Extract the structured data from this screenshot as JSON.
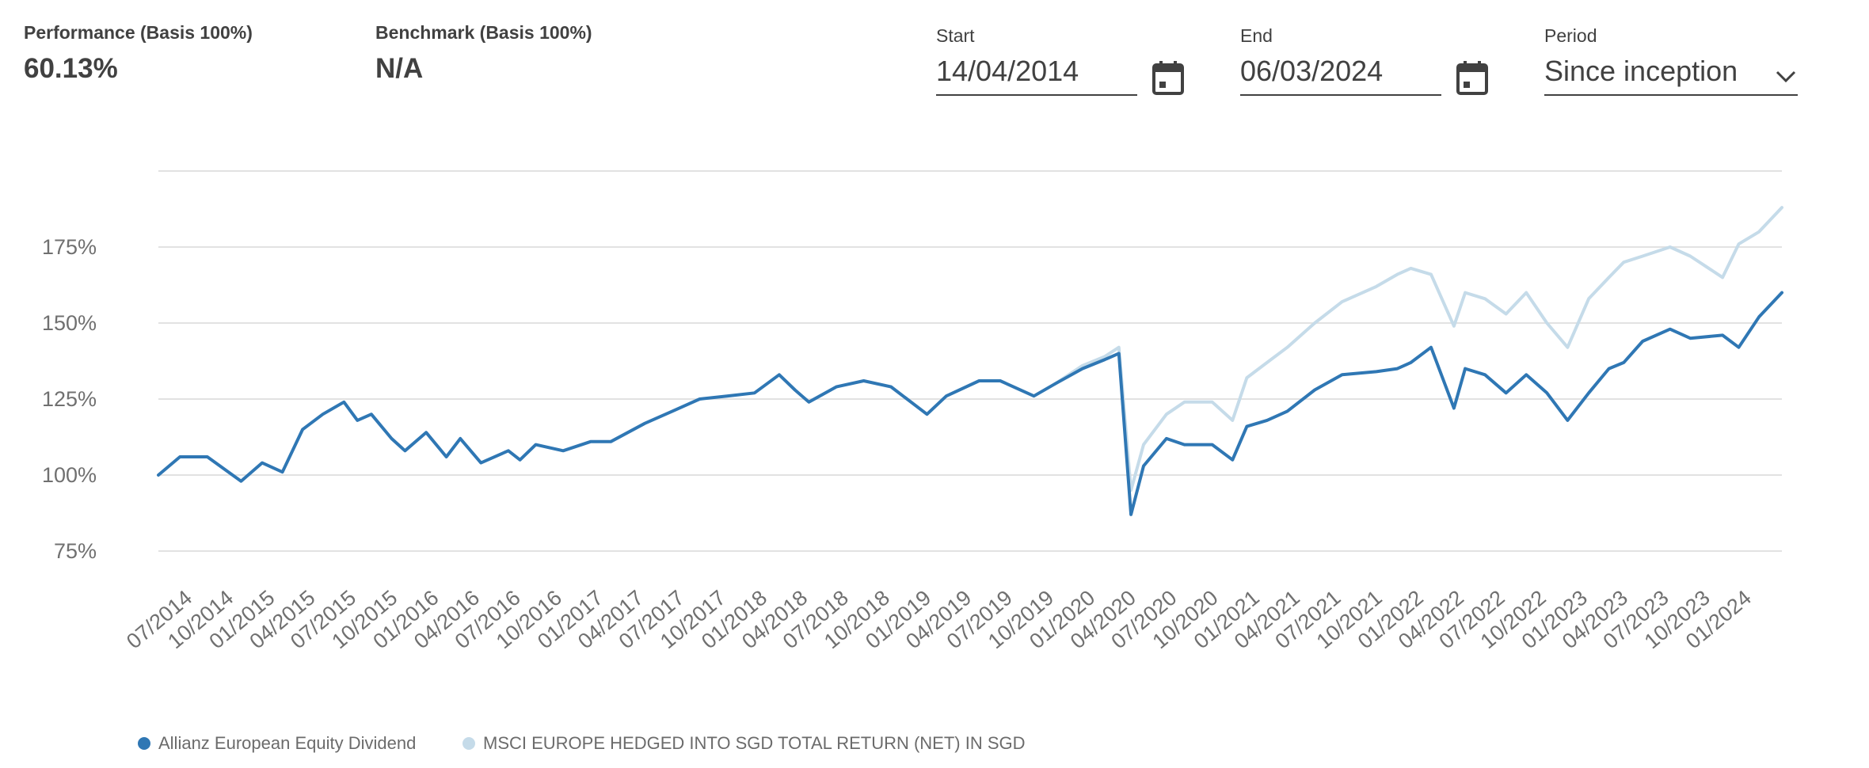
{
  "header": {
    "performance": {
      "label": "Performance (Basis 100%)",
      "value": "60.13%"
    },
    "benchmark": {
      "label": "Benchmark (Basis 100%)",
      "value": "N/A"
    },
    "start": {
      "label": "Start",
      "value": "14/04/2014",
      "icon": "calendar-icon"
    },
    "end": {
      "label": "End",
      "value": "06/03/2024",
      "icon": "calendar-icon"
    },
    "period": {
      "label": "Period",
      "value": "Since inception",
      "icon": "chevron-down-icon"
    }
  },
  "chart_data": {
    "type": "line",
    "title": "",
    "xlabel": "",
    "ylabel": "",
    "ylim": [
      75,
      200
    ],
    "yticks": [
      75,
      100,
      125,
      150,
      175
    ],
    "ytick_labels": [
      "75%",
      "100%",
      "125%",
      "150%",
      "175%"
    ],
    "xlim": [
      "2014-04-14",
      "2024-03-06"
    ],
    "xtick_labels": [
      "07/2014",
      "10/2014",
      "01/2015",
      "04/2015",
      "07/2015",
      "10/2015",
      "01/2016",
      "04/2016",
      "07/2016",
      "10/2016",
      "01/2017",
      "04/2017",
      "07/2017",
      "10/2017",
      "01/2018",
      "04/2018",
      "07/2018",
      "10/2018",
      "01/2019",
      "04/2019",
      "07/2019",
      "10/2019",
      "01/2020",
      "04/2020",
      "07/2020",
      "10/2020",
      "01/2021",
      "04/2021",
      "07/2021",
      "10/2021",
      "01/2022",
      "04/2022",
      "07/2022",
      "10/2022",
      "01/2023",
      "04/2023",
      "07/2023",
      "10/2023",
      "01/2024"
    ],
    "grid": true,
    "legend_position": "bottom-left",
    "series": [
      {
        "name": "Allianz European Equity Dividend",
        "color": "#2f77b4",
        "x": [
          "2014-04-14",
          "2014-06-01",
          "2014-08-01",
          "2014-10-15",
          "2014-12-01",
          "2015-01-15",
          "2015-03-01",
          "2015-04-15",
          "2015-06-01",
          "2015-07-01",
          "2015-08-01",
          "2015-09-15",
          "2015-10-15",
          "2015-12-01",
          "2016-01-15",
          "2016-02-15",
          "2016-04-01",
          "2016-06-01",
          "2016-06-27",
          "2016-08-01",
          "2016-10-01",
          "2016-12-01",
          "2017-01-15",
          "2017-04-01",
          "2017-06-01",
          "2017-08-01",
          "2017-10-01",
          "2017-12-01",
          "2018-01-25",
          "2018-03-01",
          "2018-04-01",
          "2018-06-01",
          "2018-08-01",
          "2018-10-01",
          "2018-12-20",
          "2019-02-01",
          "2019-04-15",
          "2019-06-01",
          "2019-08-15",
          "2019-10-01",
          "2019-12-01",
          "2020-01-20",
          "2020-02-20",
          "2020-03-18",
          "2020-04-15",
          "2020-06-05",
          "2020-07-15",
          "2020-09-15",
          "2020-10-30",
          "2020-12-01",
          "2021-01-15",
          "2021-03-01",
          "2021-05-01",
          "2021-07-01",
          "2021-09-15",
          "2021-11-01",
          "2021-12-01",
          "2022-01-15",
          "2022-03-07",
          "2022-04-01",
          "2022-05-15",
          "2022-07-01",
          "2022-08-15",
          "2022-09-30",
          "2022-11-15",
          "2023-01-01",
          "2023-02-15",
          "2023-03-20",
          "2023-05-01",
          "2023-07-01",
          "2023-08-15",
          "2023-10-26",
          "2023-12-01",
          "2024-01-15",
          "2024-03-06"
        ],
        "values": [
          100,
          106,
          106,
          98,
          104,
          101,
          115,
          120,
          124,
          118,
          120,
          112,
          108,
          114,
          106,
          112,
          104,
          108,
          105,
          110,
          108,
          111,
          111,
          117,
          121,
          125,
          126,
          127,
          133,
          128,
          124,
          129,
          131,
          129,
          120,
          126,
          131,
          131,
          126,
          130,
          135,
          138,
          140,
          87,
          103,
          112,
          110,
          110,
          105,
          116,
          118,
          121,
          128,
          133,
          134,
          135,
          137,
          142,
          122,
          135,
          133,
          127,
          133,
          127,
          118,
          127,
          135,
          137,
          144,
          148,
          145,
          146,
          142,
          152,
          160
        ]
      },
      {
        "name": "MSCI EUROPE HEDGED INTO SGD TOTAL RETURN (NET) IN SGD",
        "color": "#c5dbe9",
        "x": [
          "2019-10-01",
          "2019-12-01",
          "2020-01-20",
          "2020-02-20",
          "2020-03-18",
          "2020-04-15",
          "2020-06-05",
          "2020-07-15",
          "2020-09-15",
          "2020-10-30",
          "2020-12-01",
          "2021-01-15",
          "2021-03-01",
          "2021-05-01",
          "2021-07-01",
          "2021-09-15",
          "2021-11-01",
          "2021-12-01",
          "2022-01-15",
          "2022-03-07",
          "2022-04-01",
          "2022-05-15",
          "2022-07-01",
          "2022-08-15",
          "2022-09-30",
          "2022-11-15",
          "2023-01-01",
          "2023-02-15",
          "2023-03-20",
          "2023-05-01",
          "2023-07-01",
          "2023-08-15",
          "2023-10-26",
          "2023-12-01",
          "2024-01-15",
          "2024-03-06"
        ],
        "values": [
          130,
          136,
          139,
          142,
          95,
          110,
          120,
          124,
          124,
          118,
          132,
          137,
          142,
          150,
          157,
          162,
          166,
          168,
          166,
          149,
          160,
          158,
          153,
          160,
          150,
          142,
          158,
          165,
          170,
          172,
          175,
          172,
          165,
          176,
          180,
          188
        ]
      }
    ]
  }
}
